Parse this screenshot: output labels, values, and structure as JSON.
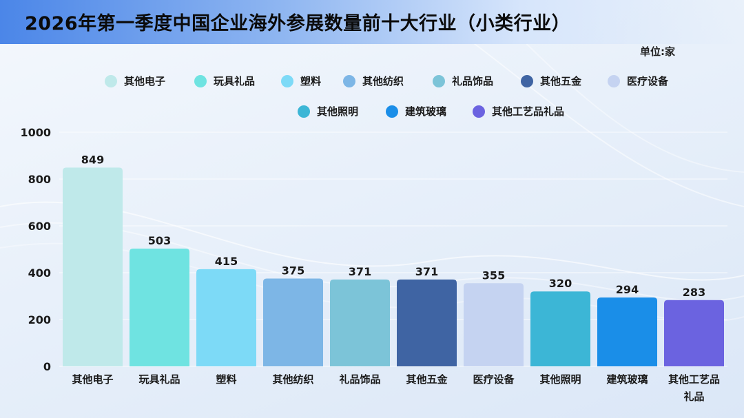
{
  "title": "2026年第一季度中国企业海外参展数量前十大行业（小类行业）",
  "unit": "单位:家",
  "chart_data": {
    "type": "bar",
    "categories": [
      "其他电子",
      "玩具礼品",
      "塑料",
      "其他纺织",
      "礼品饰品",
      "其他五金",
      "医疗设备",
      "其他照明",
      "建筑玻璃",
      "其他工艺品礼品"
    ],
    "category_label_lines": [
      [
        "其他电子"
      ],
      [
        "玩具礼品"
      ],
      [
        "塑料"
      ],
      [
        "其他纺织"
      ],
      [
        "礼品饰品"
      ],
      [
        "其他五金"
      ],
      [
        "医疗设备"
      ],
      [
        "其他照明"
      ],
      [
        "建筑玻璃"
      ],
      [
        "其他工艺品",
        "礼品"
      ]
    ],
    "values": [
      849,
      503,
      415,
      375,
      371,
      371,
      355,
      320,
      294,
      283
    ],
    "colors": [
      "#bfe9ea",
      "#6fe3e1",
      "#7ddaf7",
      "#7db6e6",
      "#7cc4d8",
      "#3f64a3",
      "#c5d3f1",
      "#3cb6d6",
      "#1a8ee8",
      "#6b63e0"
    ],
    "ylim": [
      0,
      1000
    ],
    "yticks": [
      0,
      200,
      400,
      600,
      800,
      1000
    ],
    "grid": true,
    "legend_placement": "top",
    "title": "2026年第一季度中国企业海外参展数量前十大行业（小类行业）",
    "xlabel": "",
    "ylabel": ""
  }
}
